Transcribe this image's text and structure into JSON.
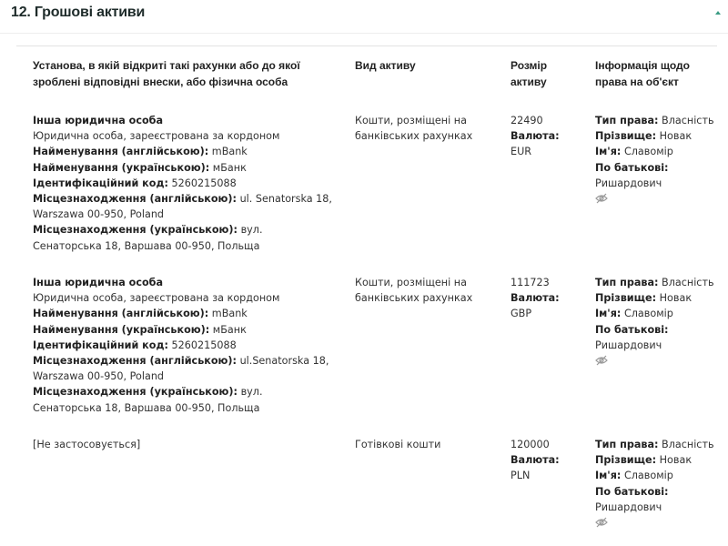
{
  "section": {
    "title": "12.  Грошові активи",
    "collapse_icon": "caret-up-icon",
    "accent": "#3a9c84"
  },
  "columns": [
    "Установа, в якій відкриті такі рахунки або до якої зроблені відповідні внески, або фізична особа",
    "Вид активу",
    "Розмір активу",
    "Інформація щодо права на об'єкт"
  ],
  "rows": [
    {
      "institution": [
        {
          "label": "",
          "value": "Інша юридична особа",
          "bold": true
        },
        {
          "label": "",
          "value": "Юридична особа, зареєстрована за кордоном"
        },
        {
          "label": "Найменування (англійською):",
          "value": " mBank"
        },
        {
          "label": "Найменування (українською):",
          "value": " мБанк"
        },
        {
          "label": "Ідентифікаційний код:",
          "value": " 5260215088"
        },
        {
          "label": "Місцезнаходження (англійською):",
          "value": " ul. Senatorska 18, Warszawa 00-950, Poland"
        },
        {
          "label": "Місцезнаходження (українською):",
          "value": " вул. Сенаторська 18, Варшава 00-950, Польща"
        }
      ],
      "asset_type": "Кошти, розміщені на банківських рахунках",
      "amount": "22490",
      "currency_label": "Валюта:",
      "currency": "EUR",
      "rights": {
        "type_label": "Тип права:",
        "type": " Власність",
        "surname_label": "Прізвище:",
        "surname": " Новак",
        "name_label": "Ім'я:",
        "name": " Славомір",
        "patronymic_label": "По батькові:",
        "patronymic": "Ришардович",
        "hidden_icon": "eye-slash-icon"
      }
    },
    {
      "institution": [
        {
          "label": "",
          "value": "Інша юридична особа",
          "bold": true
        },
        {
          "label": "",
          "value": "Юридична особа, зареєстрована за кордоном"
        },
        {
          "label": "Найменування (англійською):",
          "value": " mBank"
        },
        {
          "label": "Найменування (українською):",
          "value": " мБанк"
        },
        {
          "label": "Ідентифікаційний код:",
          "value": " 5260215088"
        },
        {
          "label": "Місцезнаходження (англійською):",
          "value": " ul.Senatorska 18, Warszawa 00-950, Poland"
        },
        {
          "label": "Місцезнаходження (українською):",
          "value": " вул. Сенаторська 18, Варшава 00-950, Польща"
        }
      ],
      "asset_type": "Кошти, розміщені на банківських рахунках",
      "amount": "111723",
      "currency_label": "Валюта:",
      "currency": "GBP",
      "rights": {
        "type_label": "Тип права:",
        "type": " Власність",
        "surname_label": "Прізвище:",
        "surname": " Новак",
        "name_label": "Ім'я:",
        "name": " Славомір",
        "patronymic_label": "По батькові:",
        "patronymic": "Ришардович",
        "hidden_icon": "eye-slash-icon"
      }
    },
    {
      "institution": [
        {
          "label": "",
          "value": "[Не застосовується]"
        }
      ],
      "asset_type": "Готівкові кошти",
      "amount": "120000",
      "currency_label": "Валюта:",
      "currency": "PLN",
      "rights": {
        "type_label": "Тип права:",
        "type": " Власність",
        "surname_label": "Прізвище:",
        "surname": " Новак",
        "name_label": "Ім'я:",
        "name": " Славомір",
        "patronymic_label": "По батькові:",
        "patronymic": "Ришардович",
        "hidden_icon": "eye-slash-icon"
      }
    }
  ]
}
